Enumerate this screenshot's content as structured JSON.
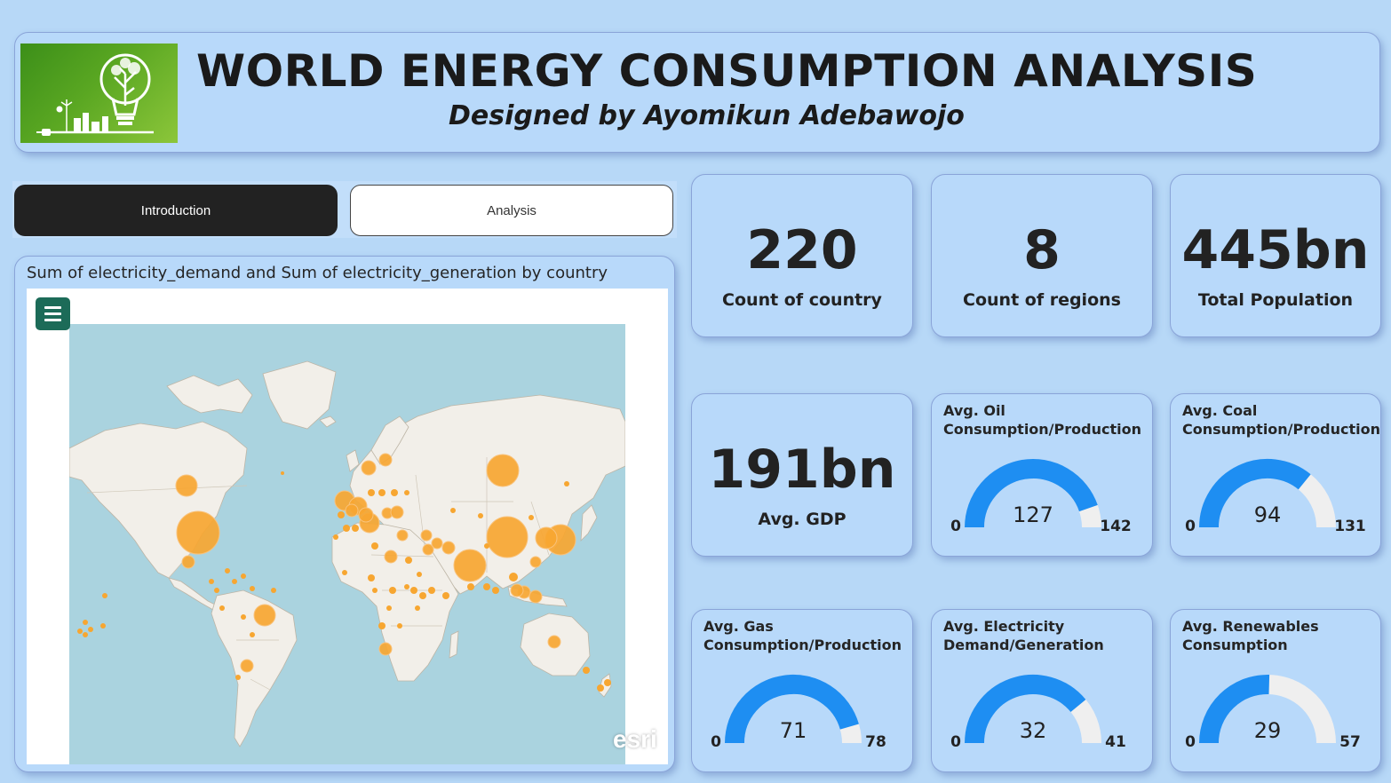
{
  "header": {
    "title": "WORLD ENERGY CONSUMPTION ANALYSIS",
    "subtitle": "Designed by Ayomikun Adebawojo",
    "logo": "lightbulb-tree-logo"
  },
  "nav": {
    "introduction_label": "Introduction",
    "analysis_label": "Analysis"
  },
  "map": {
    "title": "Sum of electricity_demand and Sum of electricity_generation by country",
    "menu_icon": "hamburger-menu-icon",
    "attribution": "esri",
    "colors": {
      "ocean": "#aad3df",
      "land": "#f2efe9",
      "bubble": "#f7a631"
    }
  },
  "kpis": {
    "country_count": {
      "value": "220",
      "label": "Count of country"
    },
    "region_count": {
      "value": "8",
      "label": "Count of regions"
    },
    "population": {
      "value": "445bn",
      "label": "Total Population"
    },
    "gdp": {
      "value": "191bn",
      "label": "Avg. GDP"
    }
  },
  "gauges": {
    "oil": {
      "title": "Avg. Oil\nConsumption/Production",
      "value": 127,
      "min": 0,
      "max": 142
    },
    "coal": {
      "title": "Avg. Coal\nConsumption/Production",
      "value": 94,
      "min": 0,
      "max": 131
    },
    "gas": {
      "title": "Avg. Gas\nConsumption/Production",
      "value": 71,
      "min": 0,
      "max": 78
    },
    "electricity": {
      "title": "Avg. Electricity\nDemand/Generation",
      "value": 32,
      "min": 0,
      "max": 41
    },
    "renewables": {
      "title": "Avg. Renewables\nConsumption",
      "value": 29,
      "min": 0,
      "max": 57
    }
  },
  "colors": {
    "gauge_fill": "#1e8ef2",
    "gauge_track": "#efefef",
    "panel_bg": "#b8d9fa"
  }
}
